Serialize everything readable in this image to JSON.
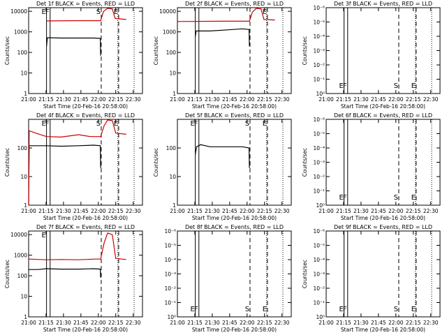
{
  "page": {
    "window_title": "",
    "background": "#ffffff",
    "x_tick_labels": [
      "21:00",
      "21:15",
      "21:30",
      "21:45",
      "22:00",
      "22:15",
      "22:30"
    ],
    "y_axis_label": "Counts/sec",
    "x_axis_label": "Start Time (20-Feb-16 20:58:00)",
    "colors": {
      "events": "#000000",
      "lld": "#cc0000"
    }
  },
  "chart_data": [
    {
      "type": "line",
      "title": "Det 1f BLACK = Events, RED = LLD",
      "xlabel": "Start Time (20-Feb-16 20:58:00)",
      "ylabel": "Counts/sec",
      "log_y": true,
      "x_unit": "minutes after 20:58:00",
      "xlim": [
        2,
        100
      ],
      "ylim": [
        1,
        15000
      ],
      "y_tick_labels": [
        "1",
        "10",
        "100",
        "1000",
        "10000"
      ],
      "x_tick_labels": [
        "21:00",
        "21:15",
        "21:30",
        "21:45",
        "22:00",
        "22:15",
        "22:30"
      ],
      "markers": [
        {
          "x": 17.4,
          "style": "solid",
          "label": "E"
        },
        {
          "x": 20.5,
          "style": "solid",
          "label": "F"
        },
        {
          "x": 64.5,
          "style": "dashed",
          "label": "S"
        },
        {
          "x": 79.5,
          "style": "dashed",
          "label": "E"
        },
        {
          "x": 78.8,
          "style": "dotted",
          "label": ""
        },
        {
          "x": 92.8,
          "style": "dotted",
          "label": ""
        }
      ],
      "series": [
        {
          "name": "Events",
          "color": "#000000",
          "points": [
            [
              17.4,
              200
            ],
            [
              18.2,
              520
            ],
            [
              30,
              500
            ],
            [
              45,
              500
            ],
            [
              58,
              500
            ],
            [
              63.7,
              480
            ],
            [
              64,
              70
            ]
          ]
        },
        {
          "name": "LLD",
          "color": "#cc0000",
          "points": [
            [
              17.4,
              3400
            ],
            [
              40,
              3500
            ],
            [
              64,
              3500
            ],
            [
              66.5,
              10000
            ],
            [
              70,
              14000
            ],
            [
              74,
              13000
            ],
            [
              76.5,
              4500
            ],
            [
              86,
              4000
            ]
          ]
        }
      ]
    },
    {
      "type": "line",
      "title": "Det 2f BLACK = Events, RED = LLD",
      "xlabel": "Start Time (20-Feb-16 20:58:00)",
      "ylabel": "Counts/sec",
      "log_y": true,
      "x_unit": "minutes after 20:58:00",
      "xlim": [
        2,
        100
      ],
      "ylim": [
        1,
        15000
      ],
      "y_tick_labels": [
        "1",
        "10",
        "100",
        "1000",
        "10000"
      ],
      "x_tick_labels": [
        "21:00",
        "21:15",
        "21:30",
        "21:45",
        "22:00",
        "22:15",
        "22:30"
      ],
      "markers": [
        {
          "x": 17.4,
          "style": "solid",
          "label": ""
        },
        {
          "x": 20.5,
          "style": "solid",
          "label": ""
        },
        {
          "x": 64.5,
          "style": "dashed",
          "label": ""
        },
        {
          "x": 79.5,
          "style": "dashed",
          "label": "E"
        },
        {
          "x": 78.8,
          "style": "dotted",
          "label": ""
        },
        {
          "x": 92.8,
          "style": "dotted",
          "label": ""
        }
      ],
      "series": [
        {
          "name": "Events",
          "color": "#000000",
          "points": [
            [
              17.4,
              600
            ],
            [
              18.2,
              1100
            ],
            [
              30,
              1100
            ],
            [
              45,
              1250
            ],
            [
              58,
              1400
            ],
            [
              63.7,
              1300
            ],
            [
              64,
              200
            ]
          ]
        },
        {
          "name": "LLD",
          "color": "#cc0000",
          "points": [
            [
              2,
              3200
            ],
            [
              40,
              3300
            ],
            [
              64,
              3300
            ],
            [
              66.5,
              9000
            ],
            [
              70,
              14000
            ],
            [
              74,
              13000
            ],
            [
              76.5,
              4000
            ],
            [
              86,
              3800
            ]
          ]
        }
      ]
    },
    {
      "type": "line",
      "title": "Det 3f BLACK = Events, RED = LLD",
      "xlabel": "Start Time (20-Feb-16 20:58:00)",
      "ylabel": "Counts/sec",
      "log_y": true,
      "x_unit": "minutes after 20:58:00",
      "xlim": [
        2,
        100
      ],
      "ylim": [
        1,
        1e-06
      ],
      "y_tick_labels": [
        "10⁰",
        "10⁻¹",
        "10⁻²",
        "10⁻³",
        "10⁻⁴",
        "10⁻⁵",
        "10⁻⁶"
      ],
      "x_tick_labels": [
        "21:00",
        "21:15",
        "21:30",
        "21:45",
        "22:00",
        "22:15",
        "22:30"
      ],
      "markers": [
        {
          "x": 17.4,
          "style": "solid",
          "label": "E"
        },
        {
          "x": 20.5,
          "style": "solid",
          "label": "F"
        },
        {
          "x": 64.5,
          "style": "dashed",
          "label": "S"
        },
        {
          "x": 79.5,
          "style": "dashed",
          "label": "E"
        },
        {
          "x": 78.8,
          "style": "dotted",
          "label": ""
        },
        {
          "x": 92.8,
          "style": "dotted",
          "label": ""
        }
      ],
      "series": []
    },
    {
      "type": "line",
      "title": "Det 4f BLACK = Events, RED = LLD",
      "xlabel": "Start Time (20-Feb-16 20:58:00)",
      "ylabel": "Counts/sec",
      "log_y": true,
      "x_unit": "minutes after 20:58:00",
      "xlim": [
        2,
        100
      ],
      "ylim": [
        1,
        1000
      ],
      "y_tick_labels": [
        "1",
        "10",
        "100"
      ],
      "x_tick_labels": [
        "21:00",
        "21:15",
        "21:30",
        "21:45",
        "22:00",
        "22:15",
        "22:30"
      ],
      "markers": [
        {
          "x": 17.4,
          "style": "solid",
          "label": "E"
        },
        {
          "x": 20.5,
          "style": "solid",
          "label": "F"
        },
        {
          "x": 64.5,
          "style": "dashed",
          "label": "S"
        },
        {
          "x": 79.5,
          "style": "dashed",
          "label": "E"
        },
        {
          "x": 78.8,
          "style": "dotted",
          "label": ""
        },
        {
          "x": 92.8,
          "style": "dotted",
          "label": ""
        }
      ],
      "series": [
        {
          "name": "Events",
          "color": "#000000",
          "points": [
            [
              2,
              1
            ],
            [
              2.5,
              120
            ],
            [
              10,
              120
            ],
            [
              17.4,
              120
            ],
            [
              30,
              115
            ],
            [
              45,
              120
            ],
            [
              58,
              125
            ],
            [
              63.7,
              120
            ],
            [
              64,
              20
            ]
          ]
        },
        {
          "name": "LLD",
          "color": "#cc0000",
          "points": [
            [
              2,
              1
            ],
            [
              2.5,
              400
            ],
            [
              8,
              330
            ],
            [
              17.4,
              250
            ],
            [
              30,
              240
            ],
            [
              45,
              290
            ],
            [
              55,
              250
            ],
            [
              64,
              250
            ],
            [
              67,
              600
            ],
            [
              70,
              950
            ],
            [
              74,
              900
            ],
            [
              77,
              330
            ],
            [
              86,
              300
            ]
          ]
        }
      ]
    },
    {
      "type": "line",
      "title": "Det 5f BLACK = Events, RED = LLD",
      "xlabel": "Start Time (20-Feb-16 20:58:00)",
      "ylabel": "Counts/sec",
      "log_y": true,
      "x_unit": "minutes after 20:58:00",
      "xlim": [
        2,
        100
      ],
      "ylim": [
        1,
        1000
      ],
      "y_tick_labels": [
        "1",
        "10",
        "100"
      ],
      "x_tick_labels": [
        "21:00",
        "21:15",
        "21:30",
        "21:45",
        "22:00",
        "22:15",
        "22:30"
      ],
      "markers": [
        {
          "x": 17.4,
          "style": "solid",
          "label": "E"
        },
        {
          "x": 20.5,
          "style": "solid",
          "label": "F"
        },
        {
          "x": 64.5,
          "style": "dashed",
          "label": "S"
        },
        {
          "x": 79.5,
          "style": "dashed",
          "label": "E"
        },
        {
          "x": 78.8,
          "style": "dotted",
          "label": ""
        },
        {
          "x": 92.8,
          "style": "dotted",
          "label": ""
        }
      ],
      "series": [
        {
          "name": "Events",
          "color": "#000000",
          "points": [
            [
              17.4,
              60
            ],
            [
              18.5,
              110
            ],
            [
              22,
              130
            ],
            [
              30,
              110
            ],
            [
              45,
              110
            ],
            [
              58,
              110
            ],
            [
              63.7,
              100
            ],
            [
              64,
              20
            ]
          ]
        }
      ]
    },
    {
      "type": "line",
      "title": "Det 6f BLACK = Events, RED = LLD",
      "xlabel": "Start Time (20-Feb-16 20:58:00)",
      "ylabel": "Counts/sec",
      "log_y": true,
      "x_unit": "minutes after 20:58:00",
      "xlim": [
        2,
        100
      ],
      "ylim": [
        1,
        1e-06
      ],
      "y_tick_labels": [
        "10⁰",
        "10⁻¹",
        "10⁻²",
        "10⁻³",
        "10⁻⁴",
        "10⁻⁵",
        "10⁻⁶"
      ],
      "x_tick_labels": [
        "21:00",
        "21:15",
        "21:30",
        "21:45",
        "22:00",
        "22:15",
        "22:30"
      ],
      "markers": [
        {
          "x": 17.4,
          "style": "solid",
          "label": "E"
        },
        {
          "x": 20.5,
          "style": "solid",
          "label": "F"
        },
        {
          "x": 64.5,
          "style": "dashed",
          "label": "S"
        },
        {
          "x": 79.5,
          "style": "dashed",
          "label": "E"
        },
        {
          "x": 78.8,
          "style": "dotted",
          "label": ""
        },
        {
          "x": 92.8,
          "style": "dotted",
          "label": ""
        }
      ],
      "series": []
    },
    {
      "type": "line",
      "title": "Det 7f BLACK = Events, RED = LLD",
      "xlabel": "Start Time (20-Feb-16 20:58:00)",
      "ylabel": "Counts/sec",
      "log_y": true,
      "x_unit": "minutes after 20:58:00",
      "xlim": [
        2,
        100
      ],
      "ylim": [
        1,
        15000
      ],
      "y_tick_labels": [
        "1",
        "10",
        "100",
        "1000",
        "10000"
      ],
      "x_tick_labels": [
        "21:00",
        "21:15",
        "21:30",
        "21:45",
        "22:00",
        "22:15",
        "22:30"
      ],
      "markers": [
        {
          "x": 17.4,
          "style": "solid",
          "label": "E"
        },
        {
          "x": 20.5,
          "style": "solid",
          "label": ""
        },
        {
          "x": 64.5,
          "style": "dashed",
          "label": ""
        },
        {
          "x": 79.5,
          "style": "dashed",
          "label": ""
        },
        {
          "x": 78.8,
          "style": "dotted",
          "label": ""
        },
        {
          "x": 92.8,
          "style": "dotted",
          "label": ""
        }
      ],
      "series": [
        {
          "name": "Events",
          "color": "#000000",
          "points": [
            [
              2,
              200
            ],
            [
              10,
              200
            ],
            [
              17.4,
              220
            ],
            [
              30,
              210
            ],
            [
              45,
              210
            ],
            [
              58,
              220
            ],
            [
              63.7,
              210
            ],
            [
              64,
              80
            ]
          ]
        },
        {
          "name": "LLD",
          "color": "#cc0000",
          "points": [
            [
              2,
              650
            ],
            [
              17.4,
              600
            ],
            [
              30,
              620
            ],
            [
              45,
              600
            ],
            [
              60,
              650
            ],
            [
              64,
              650
            ],
            [
              67,
              4000
            ],
            [
              70,
              12000
            ],
            [
              74,
              10000
            ],
            [
              77,
              700
            ],
            [
              86,
              620
            ]
          ]
        }
      ]
    },
    {
      "type": "line",
      "title": "Det 8f BLACK = Events, RED = LLD",
      "xlabel": "Start Time (20-Feb-16 20:58:00)",
      "ylabel": "",
      "log_y": true,
      "x_unit": "minutes after 20:58:00",
      "xlim": [
        2,
        100
      ],
      "ylim": [
        1,
        1e-06
      ],
      "y_tick_labels": [
        "10⁰",
        "10⁻¹",
        "10⁻²",
        "10⁻³",
        "10⁻⁴",
        "10⁻⁵",
        "10⁻⁶"
      ],
      "x_tick_labels": [
        "21:00",
        "21:15",
        "21:30",
        "21:45",
        "22:00",
        "22:15",
        "22:30"
      ],
      "markers": [
        {
          "x": 17.4,
          "style": "solid",
          "label": "E"
        },
        {
          "x": 20.5,
          "style": "solid",
          "label": "F"
        },
        {
          "x": 64.5,
          "style": "dashed",
          "label": "S"
        },
        {
          "x": 79.5,
          "style": "dashed",
          "label": "E"
        },
        {
          "x": 78.8,
          "style": "dotted",
          "label": ""
        },
        {
          "x": 92.8,
          "style": "dotted",
          "label": ""
        }
      ],
      "series": []
    },
    {
      "type": "line",
      "title": "Det 9f BLACK = Events, RED = LLD",
      "xlabel": "Start Time (20-Feb-16 20:58:00)",
      "ylabel": "Counts/sec",
      "log_y": true,
      "x_unit": "minutes after 20:58:00",
      "xlim": [
        2,
        100
      ],
      "ylim": [
        1,
        1e-06
      ],
      "y_tick_labels": [
        "10⁰",
        "10⁻¹",
        "10⁻²",
        "10⁻³",
        "10⁻⁴",
        "10⁻⁵",
        "10⁻⁶"
      ],
      "x_tick_labels": [
        "21:00",
        "21:15",
        "21:30",
        "21:45",
        "22:00",
        "22:15",
        "22:30"
      ],
      "markers": [
        {
          "x": 17.4,
          "style": "solid",
          "label": "E"
        },
        {
          "x": 20.5,
          "style": "solid",
          "label": "F"
        },
        {
          "x": 64.5,
          "style": "dashed",
          "label": "S"
        },
        {
          "x": 79.5,
          "style": "dashed",
          "label": "E"
        },
        {
          "x": 78.8,
          "style": "dotted",
          "label": ""
        },
        {
          "x": 92.8,
          "style": "dotted",
          "label": ""
        }
      ],
      "series": []
    }
  ]
}
